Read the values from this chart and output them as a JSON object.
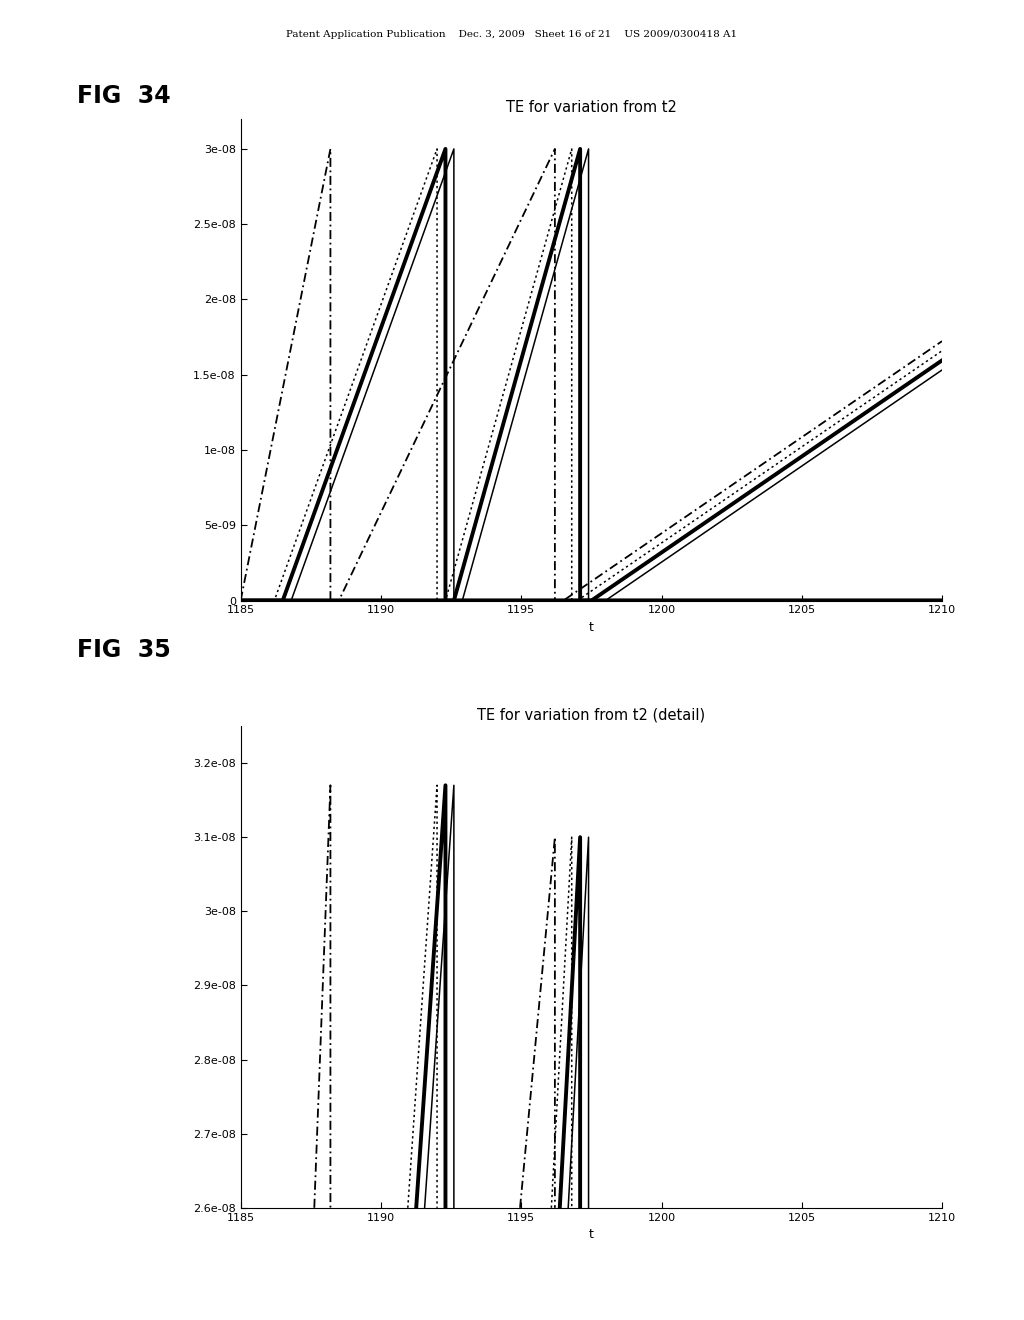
{
  "fig34": {
    "title": "TE for variation from t2",
    "xlabel": "t",
    "xlim": [
      1185,
      1210
    ],
    "ylim": [
      0,
      3.2e-08
    ],
    "yticks": [
      0,
      5e-09,
      1e-08,
      1.5e-08,
      2e-08,
      2.5e-08,
      3e-08
    ],
    "ytick_labels": [
      "0",
      "5e-09",
      "1e-08",
      "1.5e-08",
      "2e-08",
      "2.5e-08",
      "3e-08"
    ],
    "xticks": [
      1185,
      1190,
      1195,
      1200,
      1205,
      1210
    ],
    "lines": [
      {
        "start": 1185.0,
        "peak": 1188.2,
        "style": "dashdot",
        "lw": 1.3
      },
      {
        "start": 1186.2,
        "peak": 1192.0,
        "style": "dotted",
        "lw": 1.1
      },
      {
        "start": 1186.5,
        "peak": 1192.3,
        "style": "solid",
        "lw": 2.8
      },
      {
        "start": 1186.8,
        "peak": 1192.6,
        "style": "solid",
        "lw": 1.1
      },
      {
        "start": 1188.5,
        "peak": 1196.2,
        "style": "dashdot",
        "lw": 1.3
      },
      {
        "start": 1192.3,
        "peak": 1196.8,
        "style": "dotted",
        "lw": 1.1
      },
      {
        "start": 1192.6,
        "peak": 1197.1,
        "style": "solid",
        "lw": 2.8
      },
      {
        "start": 1192.9,
        "peak": 1197.4,
        "style": "solid",
        "lw": 1.1
      },
      {
        "start": 1196.5,
        "peak": 1220.0,
        "style": "dashdot",
        "lw": 1.3
      },
      {
        "start": 1197.0,
        "peak": 1220.5,
        "style": "dotted",
        "lw": 1.1
      },
      {
        "start": 1197.5,
        "peak": 1221.0,
        "style": "solid",
        "lw": 2.8
      },
      {
        "start": 1198.0,
        "peak": 1221.5,
        "style": "solid",
        "lw": 1.1
      }
    ]
  },
  "fig35": {
    "title": "TE for variation from t2 (detail)",
    "xlabel": "t",
    "xlim": [
      1185,
      1210
    ],
    "ylim": [
      2.6e-08,
      3.25e-08
    ],
    "yticks": [
      2.6e-08,
      2.7e-08,
      2.8e-08,
      2.9e-08,
      3e-08,
      3.1e-08,
      3.2e-08
    ],
    "ytick_labels": [
      "2.6e-08",
      "2.7e-08",
      "2.8e-08",
      "2.9e-08",
      "3e-08",
      "3.1e-08",
      "3.2e-08"
    ],
    "xticks": [
      1185,
      1190,
      1195,
      1200,
      1205,
      1210
    ]
  },
  "header_text": "Patent Application Publication    Dec. 3, 2009   Sheet 16 of 21    US 2009/0300418 A1",
  "bg_color": "#ffffff"
}
